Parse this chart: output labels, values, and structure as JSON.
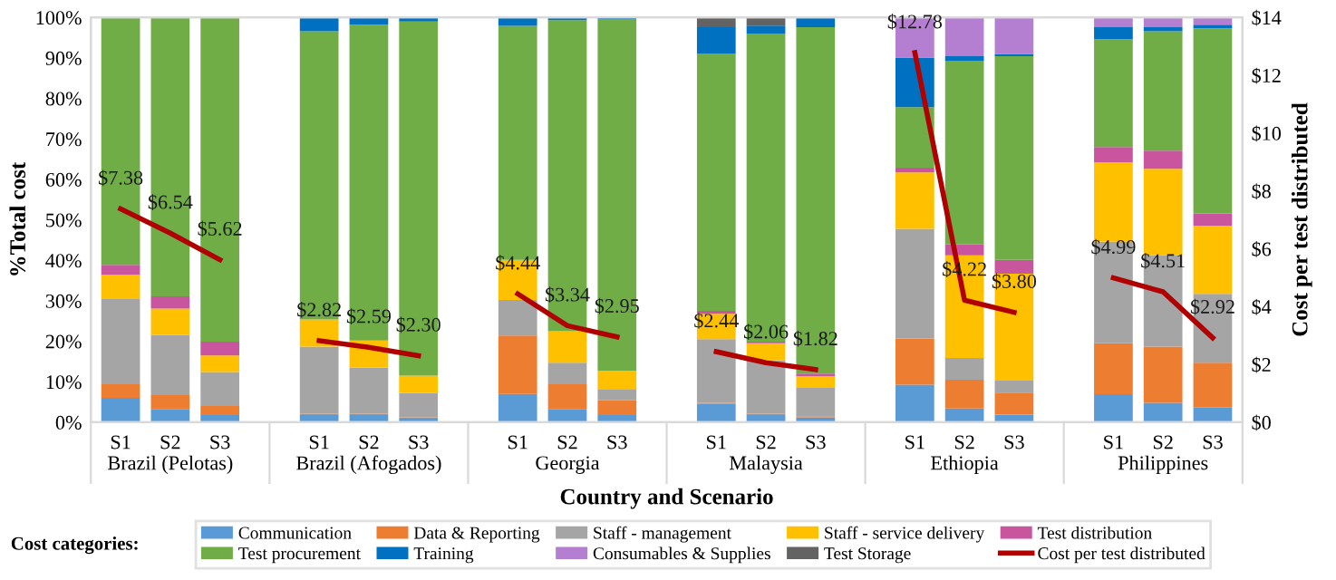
{
  "chart_data": {
    "type": "bar",
    "stacked": true,
    "xlabel": "Country and Scenario",
    "ylabel": "%Total cost",
    "y2label": "Cost per test distributed",
    "legend_title": "Cost categories:",
    "legend": "bottom",
    "categories": [
      "S1",
      "S2",
      "S3",
      null,
      "S1",
      "S2",
      "S3",
      null,
      "S1",
      "S2",
      "S3",
      null,
      "S1",
      "S2",
      "S3",
      null,
      "S1",
      "S2",
      "S3",
      null,
      "S1",
      "S2",
      "S3"
    ],
    "annotations": [
      "Brazil (Pelotas)",
      "Brazil (Afogados)",
      "Georgia",
      "Malaysia",
      "Ethiopia",
      "Philippines"
    ],
    "ylim": [
      0,
      100
    ],
    "yticks": [
      {
        "value": 0,
        "label": "0%"
      },
      {
        "value": 10,
        "label": "10%"
      },
      {
        "value": 20,
        "label": "20%"
      },
      {
        "value": 30,
        "label": "30%"
      },
      {
        "value": 40,
        "label": "40%"
      },
      {
        "value": 50,
        "label": "50%"
      },
      {
        "value": 60,
        "label": "60%"
      },
      {
        "value": 70,
        "label": "70%"
      },
      {
        "value": 80,
        "label": "80%"
      },
      {
        "value": 90,
        "label": "90%"
      },
      {
        "value": 100,
        "label": "100%"
      }
    ],
    "y2lim": [
      0,
      14
    ],
    "y2ticks": [
      {
        "value": 0,
        "label": "$0"
      },
      {
        "value": 2,
        "label": "$2"
      },
      {
        "value": 4,
        "label": "$4"
      },
      {
        "value": 6,
        "label": "$6"
      },
      {
        "value": 8,
        "label": "$8"
      },
      {
        "value": 10,
        "label": "$10"
      },
      {
        "value": 12,
        "label": "$12"
      },
      {
        "value": 14,
        "label": "$14"
      }
    ],
    "series": [
      {
        "name": "Communication",
        "color": "#5b9bd5",
        "values": [
          6,
          3.3,
          1.8,
          null,
          1.8,
          1.8,
          0.9,
          null,
          7,
          3.3,
          1.8,
          null,
          4.5,
          1.8,
          1.2,
          null,
          9.3,
          3.4,
          1.9,
          null,
          6.9,
          4.8,
          3.6
        ]
      },
      {
        "name": "Data & Reporting",
        "color": "#ed7d31",
        "values": [
          3.4,
          3.4,
          2.2,
          null,
          0.3,
          0.3,
          0.3,
          null,
          14.4,
          6.1,
          3.6,
          null,
          0.3,
          0.3,
          0.3,
          null,
          11.4,
          7.1,
          5.4,
          null,
          12.6,
          13.9,
          11.1
        ]
      },
      {
        "name": "Staff - management",
        "color": "#a5a5a5",
        "values": [
          21,
          14.9,
          8.4,
          null,
          16.6,
          11.4,
          6,
          null,
          8.8,
          5.3,
          2.8,
          null,
          15.7,
          13.2,
          7,
          null,
          27.1,
          5.4,
          3,
          null,
          25.1,
          22.5,
          17
        ]
      },
      {
        "name": "Staff - service delivery",
        "color": "#ffc000",
        "values": [
          6,
          6.5,
          4.1,
          null,
          6.7,
          6.7,
          4.3,
          null,
          9.9,
          7.8,
          4.5,
          null,
          6.3,
          4.2,
          2.9,
          null,
          13.9,
          25.3,
          26.4,
          null,
          19.6,
          21.4,
          16.8
        ]
      },
      {
        "name": "Test distribution",
        "color": "#c9559e",
        "values": [
          2.5,
          3,
          3.4,
          null,
          null,
          null,
          null,
          null,
          null,
          null,
          null,
          null,
          0.7,
          0.4,
          0.6,
          null,
          1.2,
          2.7,
          3.4,
          null,
          3.8,
          4.5,
          3.1
        ]
      },
      {
        "name": "Test procurement",
        "color": "#70ad47",
        "values": [
          61.1,
          68.9,
          80.1,
          null,
          71.2,
          78,
          87.5,
          null,
          57.8,
          76.8,
          86.9,
          null,
          63.5,
          76,
          85.6,
          null,
          14.9,
          45.3,
          50.3,
          null,
          26.6,
          29.5,
          45.7
        ]
      },
      {
        "name": "Training",
        "color": "#0070c0",
        "values": [
          null,
          null,
          null,
          null,
          3.4,
          1.8,
          1,
          null,
          2.1,
          0.7,
          0.4,
          null,
          6.6,
          2.1,
          2.4,
          null,
          12.3,
          1.2,
          0.6,
          null,
          3,
          1,
          0.9
        ]
      },
      {
        "name": "Consumables & Supplies",
        "color": "#b57fd1",
        "values": [
          null,
          null,
          null,
          null,
          null,
          null,
          null,
          null,
          null,
          null,
          null,
          null,
          null,
          null,
          null,
          null,
          9.9,
          9.6,
          9,
          null,
          2.4,
          2.4,
          1.8
        ]
      },
      {
        "name": "Test Storage",
        "color": "#636363",
        "values": [
          null,
          null,
          null,
          null,
          null,
          null,
          null,
          null,
          null,
          null,
          null,
          null,
          2.4,
          2.4,
          null,
          null,
          null,
          null,
          null,
          null,
          null,
          null,
          null
        ]
      },
      {
        "name": "Cost per test distributed",
        "type": "line",
        "axis": "y2",
        "color": "#b00000",
        "values": [
          7.38,
          6.54,
          5.62,
          null,
          2.82,
          2.59,
          2.3,
          null,
          4.44,
          3.34,
          2.95,
          null,
          2.44,
          2.06,
          1.82,
          null,
          12.78,
          4.22,
          3.8,
          null,
          4.99,
          4.51,
          2.92
        ],
        "value_labels": [
          "$7.38",
          "$6.54",
          "$5.62",
          null,
          "$2.82",
          "$2.59",
          "$2.30",
          null,
          "$4.44",
          "$3.34",
          "$2.95",
          null,
          "$2.44",
          "$2.06",
          "$1.82",
          null,
          "$12.78",
          "$4.22",
          "$3.80",
          null,
          "$4.99",
          "$4.51",
          "$2.92"
        ]
      }
    ]
  }
}
